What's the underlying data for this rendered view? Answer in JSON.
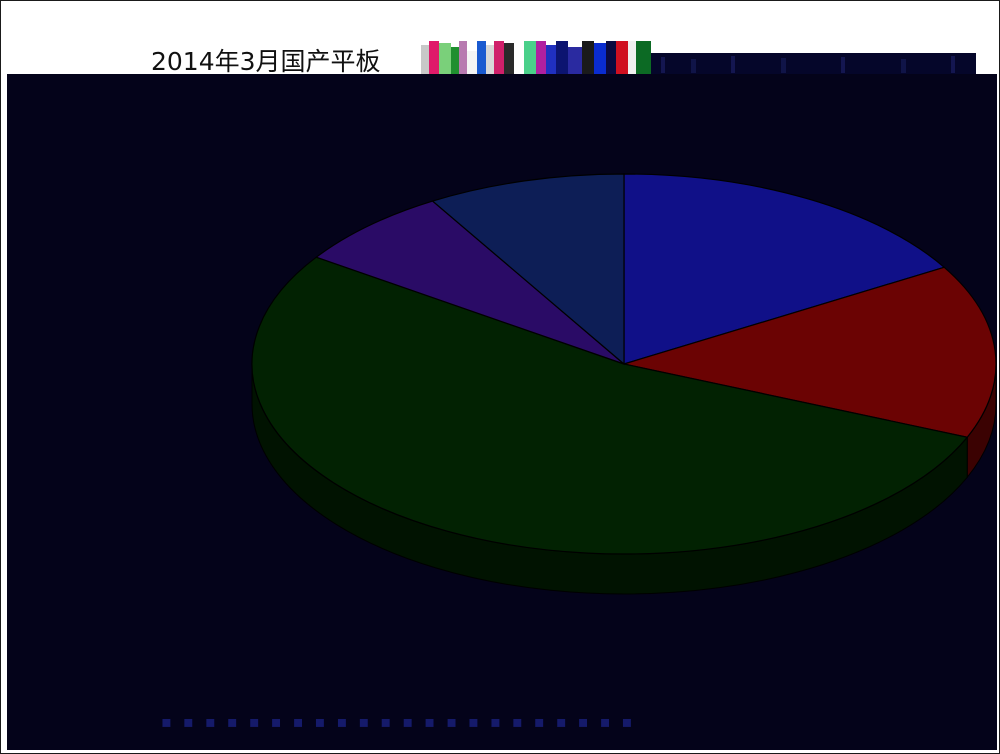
{
  "chart_data": {
    "type": "pie",
    "title": "2014年3月国产平板",
    "slices": [
      {
        "label": "",
        "value": 16.5,
        "color": "#101088"
      },
      {
        "label": "",
        "value": 14.8,
        "color": "#6b0303"
      },
      {
        "label": "",
        "value": 53.2,
        "color": "#022202"
      },
      {
        "label": "",
        "value": 6.9,
        "color": "#2a0b66"
      },
      {
        "label": "",
        "value": 8.6,
        "color": "#0d1e56"
      }
    ],
    "background": "#04031a",
    "legend": "none",
    "style": "3d-tilted"
  }
}
